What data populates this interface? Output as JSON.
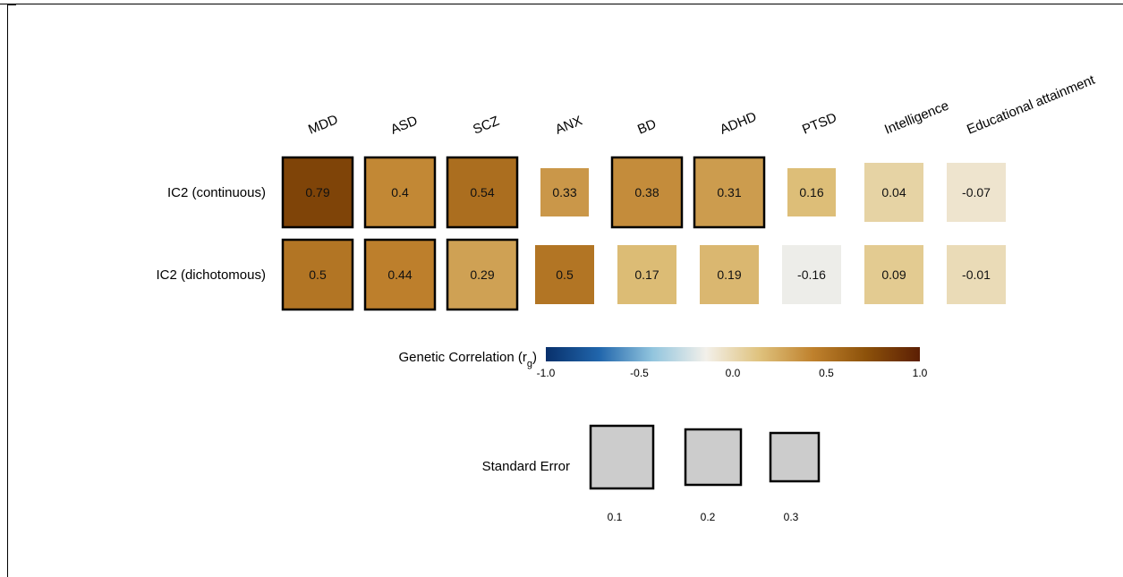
{
  "chart_data": {
    "type": "heatmap",
    "columns": [
      "MDD",
      "ASD",
      "SCZ",
      "ANX",
      "BD",
      "ADHD",
      "PTSD",
      "Intelligence",
      "Educational attainment"
    ],
    "rows": [
      "IC2 (continuous)",
      "IC2 (dichotomous)"
    ],
    "values": [
      [
        0.79,
        0.4,
        0.54,
        0.33,
        0.38,
        0.31,
        0.16,
        0.04,
        -0.07
      ],
      [
        0.5,
        0.44,
        0.29,
        0.5,
        0.17,
        0.19,
        -0.16,
        0.09,
        -0.01
      ]
    ],
    "cell_labels": [
      [
        "0.79",
        "0.4",
        "0.54",
        "0.33",
        "0.38",
        "0.31",
        "0.16",
        "0.04",
        "-0.07"
      ],
      [
        "0.5",
        "0.44",
        "0.29",
        "0.5",
        "0.17",
        "0.19",
        "-0.16",
        "0.09",
        "-0.01"
      ]
    ],
    "standard_errors": [
      [
        0.1,
        0.1,
        0.1,
        0.3,
        0.1,
        0.1,
        0.3,
        0.2,
        0.2
      ],
      [
        0.1,
        0.1,
        0.1,
        0.2,
        0.2,
        0.2,
        0.2,
        0.2,
        0.2
      ]
    ],
    "significant": [
      [
        true,
        true,
        true,
        false,
        true,
        true,
        false,
        false,
        false
      ],
      [
        true,
        true,
        true,
        false,
        false,
        false,
        false,
        false,
        false
      ]
    ],
    "colorbar": {
      "title": "Genetic Correlation (r",
      "title_subscript": "g",
      "title_close": ")",
      "range": [
        -1.0,
        1.0
      ],
      "ticks": [
        -1.0,
        -0.5,
        0.0,
        0.5,
        1.0
      ],
      "tick_labels": [
        "-1.0",
        "-0.5",
        "0.0",
        "0.5",
        "1.0"
      ],
      "colors": [
        "#08306b",
        "#2166ac",
        "#92c5de",
        "#f3f0ea",
        "#dfc27d",
        "#bf812d",
        "#8c510a",
        "#5c1f04"
      ]
    },
    "size_legend": {
      "title": "Standard Error",
      "values": [
        0.1,
        0.2,
        0.3
      ],
      "labels": [
        "0.1",
        "0.2",
        "0.3"
      ],
      "color": "#cccccc"
    }
  }
}
